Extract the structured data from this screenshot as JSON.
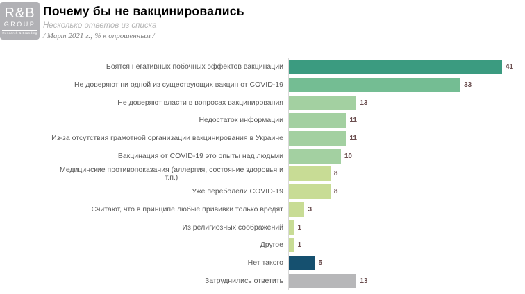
{
  "header": {
    "logo": {
      "line1": "R&B",
      "line2": "GROUP",
      "line3": "Research & Branding"
    },
    "title": "Почему бы не вакцинировались",
    "subtitle": "Несколько ответов из списка",
    "note": "/ Март 2021 г.; % к опрошенным /"
  },
  "colors": {
    "bar_dark_teal": "#3B9B80",
    "bar_medium_green": "#74BD93",
    "bar_light_green": "#A3D0A1",
    "bar_yellow_green": "#C8DC95",
    "bar_dark_blue": "#15506F",
    "bar_gray": "#B7B7B9",
    "value_label": "#6b4e4f",
    "category_label": "#595959",
    "axis_line": "#d9d9d9",
    "logo_bg": "#b1b1b5"
  },
  "chart_data": {
    "type": "bar",
    "orientation": "horizontal",
    "title": "Почему бы не вакцинировались",
    "subtitle": "Несколько ответов из списка",
    "note": "/ Март 2021 г.; % к опрошенным /",
    "unit": "% к опрошенным",
    "grid": false,
    "legend": false,
    "xlim": [
      0,
      45
    ],
    "categories": [
      "Боятся негативных побочных эффектов вакцинации",
      "Не доверяют ни одной из существующих вакцин от COVID-19",
      "Не доверяют власти в вопросах вакцинирования",
      "Недостаток информации",
      "Из-за отсутствия грамотной организации вакцинирования в Украине",
      "Вакцинация от COVID-19 это опыты над людьми",
      "Медицинские противопоказания (аллергия, состояние здоровья и\nт.п.)",
      "Уже переболели COVID-19",
      "Считают, что в принципе любые прививки только вредят",
      "Из религиозных соображений",
      "Другое",
      "Нет такого",
      "Затруднились ответить"
    ],
    "values": [
      41,
      33,
      13,
      11,
      11,
      10,
      8,
      8,
      3,
      1,
      1,
      5,
      13
    ],
    "bar_colors": [
      "#3B9B80",
      "#74BD93",
      "#A3D0A1",
      "#A3D0A1",
      "#A3D0A1",
      "#A3D0A1",
      "#C8DC95",
      "#C8DC95",
      "#C8DC95",
      "#C8DC95",
      "#C8DC95",
      "#15506F",
      "#B7B7B9"
    ]
  }
}
